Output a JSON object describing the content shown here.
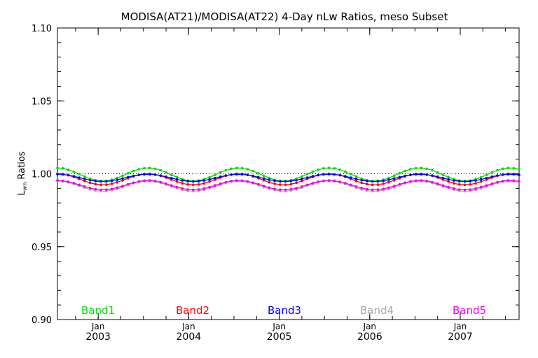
{
  "chart_data": {
    "type": "line",
    "title": "MODISA(AT21)/MODISA(AT22) 4-Day nLw Ratios, meso Subset",
    "ylabel_main": "L",
    "ylabel_sub": "wn",
    "ylabel_rest": " Ratios",
    "ylim": [
      0.9,
      1.1
    ],
    "yticks": [
      0.9,
      0.95,
      1.0,
      1.05,
      1.1
    ],
    "ytick_labels": [
      "0.90",
      "0.95",
      "1.00",
      "1.05",
      "1.10"
    ],
    "xlim": [
      2002.55,
      2007.65
    ],
    "xticks": [
      2003.0,
      2004.0,
      2005.0,
      2006.0,
      2007.0
    ],
    "xtick_month": "Jan",
    "xtick_years": [
      "2003",
      "2004",
      "2005",
      "2006",
      "2007"
    ],
    "reference_line": 1.0,
    "grid": false,
    "series": [
      {
        "name": "Band1",
        "color": "#00dd00",
        "base": 0.9995,
        "amp": 0.0045,
        "phase": 0.55
      },
      {
        "name": "Band2",
        "color": "#ff0000",
        "base": 0.9962,
        "amp": 0.0038,
        "phase": 0.55
      },
      {
        "name": "Band3",
        "color": "#0000ff",
        "base": 0.9972,
        "amp": 0.0025,
        "phase": 0.55
      },
      {
        "name": "Band4",
        "color": "#aaaaaa",
        "base": 0.9915,
        "amp": 0.0035,
        "phase": 0.55
      },
      {
        "name": "Band5",
        "color": "#ee00ee",
        "base": 0.9922,
        "amp": 0.0032,
        "phase": 0.55
      }
    ]
  }
}
